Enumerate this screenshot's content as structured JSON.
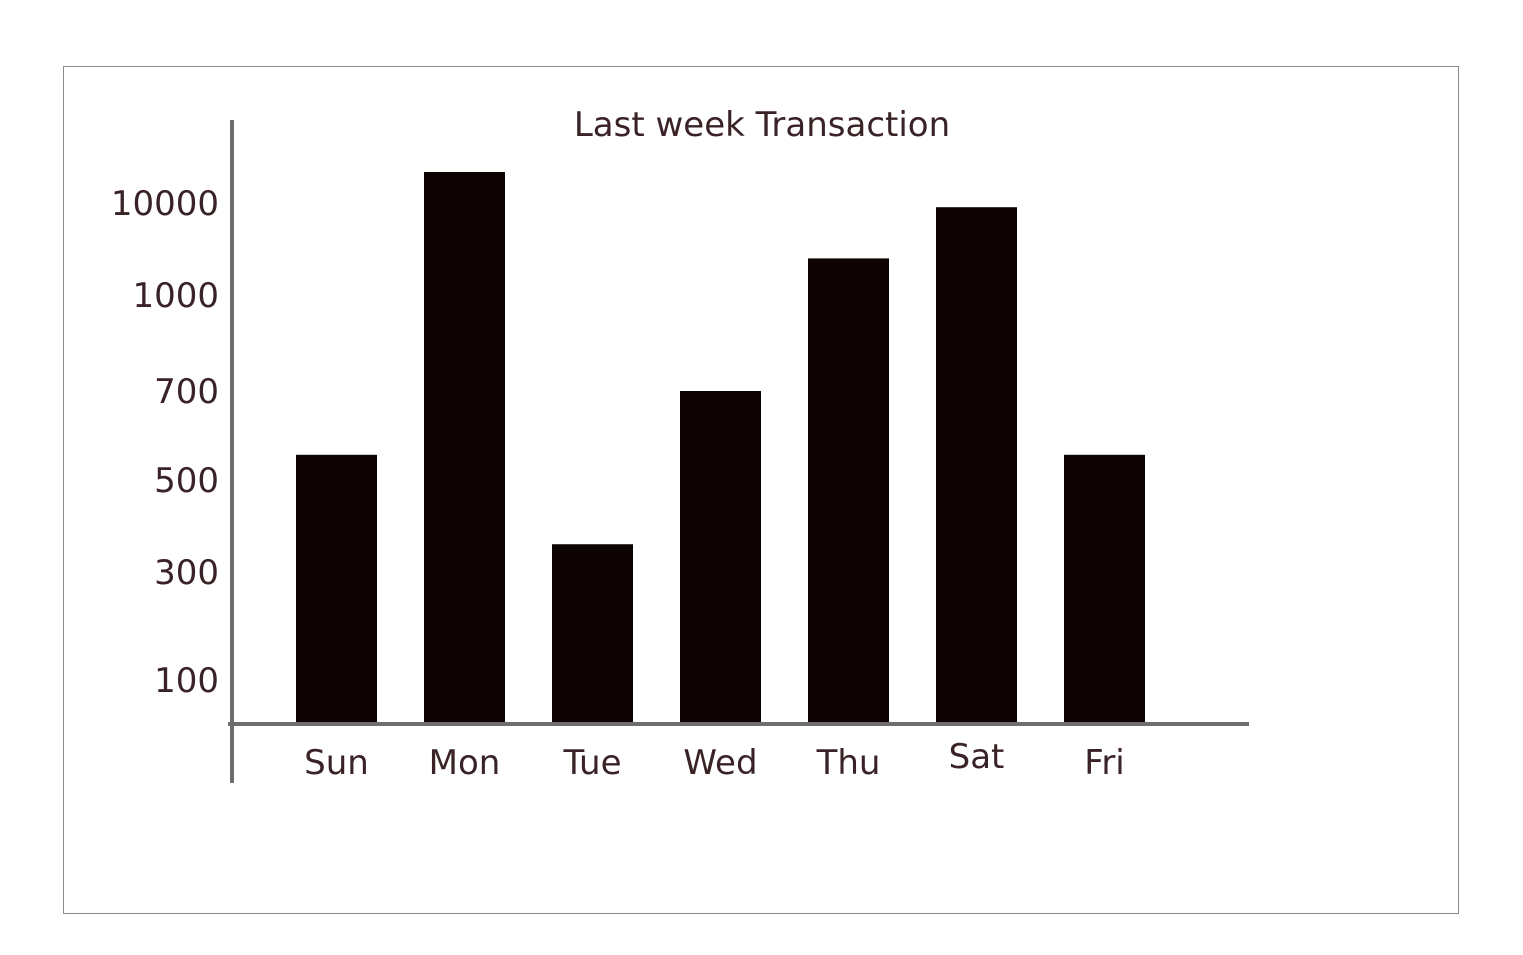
{
  "chart_data": {
    "type": "bar",
    "title": "Last week Transaction",
    "xlabel": "",
    "ylabel": "",
    "categories": [
      "Sun",
      "Mon",
      "Tue",
      "Wed",
      "Thu",
      "Sat",
      "Fri"
    ],
    "values": [
      550,
      15000,
      350,
      700,
      2500,
      9000,
      550
    ],
    "ytick_labels": [
      "100",
      "300",
      "500",
      "700",
      "1000",
      "10000"
    ],
    "grid": false,
    "legend": "none",
    "bar_color": "#0c0302",
    "axis_color": "#6e6e6e",
    "text_color": "#3a2326"
  }
}
